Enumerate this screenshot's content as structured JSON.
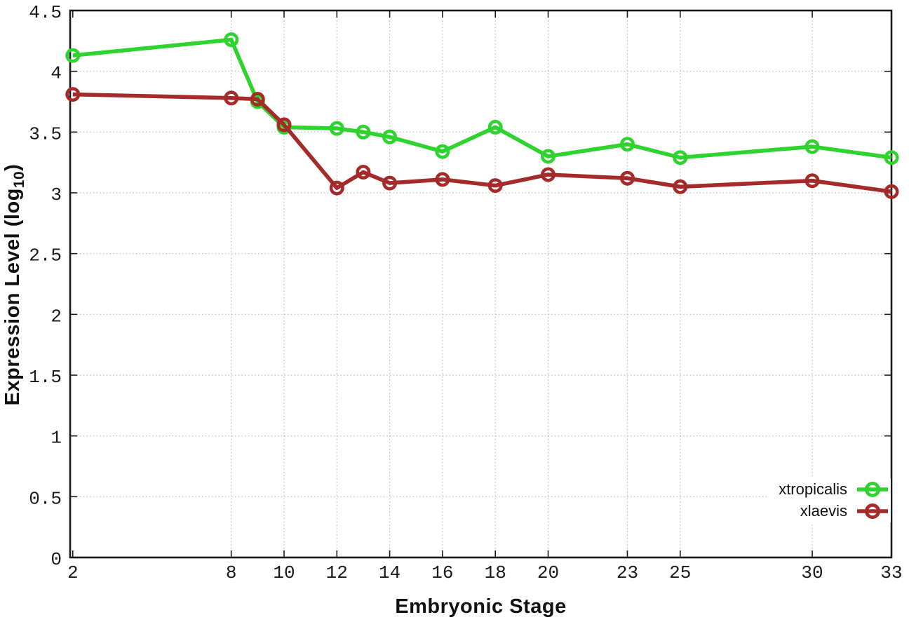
{
  "chart_data": {
    "type": "line",
    "title": "",
    "xlabel": "Embryonic Stage",
    "ylabel": "Expression Level (log10)",
    "ylabel_parts": {
      "prefix": "Expression Level (log",
      "subscript": "10",
      "suffix": ")"
    },
    "x": [
      2,
      8,
      9,
      10,
      12,
      13,
      14,
      16,
      18,
      20,
      23,
      25,
      30,
      33
    ],
    "series": [
      {
        "name": "xtropicalis",
        "color": "#2ed32e",
        "values": [
          4.13,
          4.26,
          3.75,
          3.54,
          3.53,
          3.5,
          3.46,
          3.34,
          3.54,
          3.3,
          3.4,
          3.29,
          3.38,
          3.29
        ]
      },
      {
        "name": "xlaevis",
        "color": "#a52a2a",
        "values": [
          3.81,
          3.78,
          3.77,
          3.56,
          3.04,
          3.17,
          3.08,
          3.11,
          3.06,
          3.15,
          3.12,
          3.05,
          3.1,
          3.01
        ]
      }
    ],
    "xlim": [
      1.9,
      33
    ],
    "ylim": [
      0,
      4.5
    ],
    "xticks": [
      2,
      8,
      10,
      12,
      14,
      16,
      18,
      20,
      23,
      25,
      30,
      33
    ],
    "xtick_labels": [
      "2",
      "8",
      "10",
      "12",
      "14",
      "16",
      "18",
      "20",
      "23",
      "25",
      "30",
      "33"
    ],
    "yticks": [
      0,
      0.5,
      1,
      1.5,
      2,
      2.5,
      3,
      3.5,
      4,
      4.5
    ],
    "ytick_labels": [
      "0",
      "0.5",
      "1",
      "1.5",
      "2",
      "2.5",
      "3",
      "3.5",
      "4",
      "4.5"
    ],
    "grid": true,
    "marker": "open-circle",
    "legend_position": "inside-bottom-right",
    "legend_items": [
      "xtropicalis",
      "xlaevis"
    ],
    "colors": {
      "background": "#ffffff",
      "grid": "#b8b8b8",
      "axis": "#1a1a1a",
      "tick_text": "#1a1a1a"
    }
  }
}
